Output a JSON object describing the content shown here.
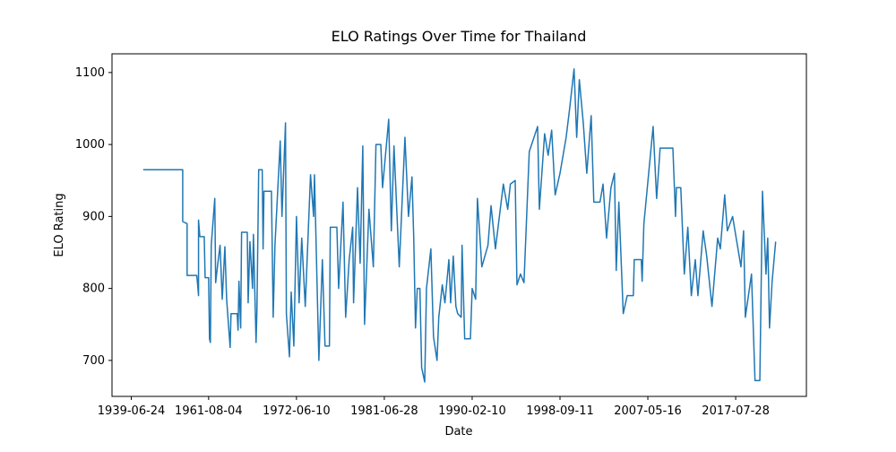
{
  "chart_data": {
    "type": "line",
    "title": "ELO Ratings Over Time for Thailand",
    "xlabel": "Date",
    "ylabel": "ELO Rating",
    "color": "#1f77b4",
    "grid": false,
    "xlim": [
      -20,
      1561
    ],
    "ylim": [
      650,
      1126
    ],
    "xticks": [
      {
        "value": 24,
        "label": "1939-06-24"
      },
      {
        "value": 200,
        "label": "1961-08-04"
      },
      {
        "value": 400,
        "label": "1972-06-10"
      },
      {
        "value": 600,
        "label": "1981-06-28"
      },
      {
        "value": 800,
        "label": "1990-02-10"
      },
      {
        "value": 1000,
        "label": "1998-09-11"
      },
      {
        "value": 1200,
        "label": "2007-05-16"
      },
      {
        "value": 1400,
        "label": "2017-07-28"
      }
    ],
    "yticks": [
      700,
      800,
      900,
      1000,
      1100
    ],
    "x": [
      51,
      141,
      141,
      151,
      151,
      173,
      175,
      177,
      177,
      180,
      190,
      192,
      200,
      202,
      204,
      206,
      214,
      216,
      220,
      226,
      231,
      237,
      241,
      249,
      251,
      265,
      267,
      269,
      273,
      275,
      288,
      290,
      294,
      300,
      302,
      308,
      310,
      314,
      322,
      324,
      326,
      343,
      347,
      351,
      363,
      367,
      375,
      377,
      384,
      388,
      394,
      400,
      406,
      412,
      420,
      432,
      439,
      441,
      451,
      459,
      465,
      475,
      477,
      492,
      496,
      506,
      512,
      520,
      528,
      530,
      539,
      545,
      551,
      555,
      565,
      575,
      581,
      592,
      596,
      610,
      616,
      622,
      634,
      647,
      655,
      663,
      667,
      671,
      675,
      681,
      685,
      692,
      696,
      706,
      712,
      720,
      724,
      732,
      738,
      747,
      751,
      757,
      763,
      767,
      775,
      777,
      783,
      796,
      800,
      808,
      812,
      822,
      836,
      843,
      853,
      871,
      881,
      887,
      898,
      902,
      910,
      918,
      930,
      949,
      953,
      965,
      973,
      981,
      989,
      1000,
      1014,
      1022,
      1032,
      1038,
      1044,
      1053,
      1061,
      1071,
      1077,
      1091,
      1098,
      1106,
      1116,
      1124,
      1128,
      1134,
      1144,
      1153,
      1167,
      1169,
      1185,
      1187,
      1191,
      1212,
      1220,
      1228,
      1257,
      1263,
      1265,
      1275,
      1283,
      1291,
      1299,
      1308,
      1314,
      1326,
      1334,
      1346,
      1359,
      1365,
      1375,
      1381,
      1393,
      1412,
      1418,
      1422,
      1436,
      1444,
      1455,
      1461,
      1469,
      1473,
      1477,
      1483,
      1491
    ],
    "values": [
      965,
      965,
      893,
      890,
      818,
      818,
      805,
      790,
      895,
      872,
      872,
      815,
      815,
      730,
      725,
      860,
      925,
      808,
      830,
      860,
      785,
      858,
      785,
      718,
      765,
      765,
      742,
      810,
      745,
      878,
      878,
      780,
      865,
      800,
      875,
      725,
      770,
      965,
      965,
      855,
      935,
      935,
      760,
      860,
      1005,
      900,
      1030,
      765,
      705,
      795,
      720,
      900,
      780,
      870,
      775,
      958,
      900,
      958,
      700,
      840,
      720,
      720,
      885,
      885,
      800,
      920,
      760,
      840,
      885,
      780,
      940,
      835,
      998,
      750,
      910,
      830,
      1000,
      1000,
      940,
      1035,
      880,
      998,
      830,
      1010,
      900,
      955,
      870,
      745,
      800,
      800,
      690,
      670,
      800,
      855,
      733,
      700,
      760,
      805,
      780,
      840,
      780,
      845,
      775,
      765,
      760,
      860,
      730,
      730,
      800,
      785,
      925,
      830,
      860,
      915,
      855,
      945,
      910,
      945,
      950,
      805,
      820,
      808,
      990,
      1025,
      910,
      1015,
      985,
      1020,
      930,
      960,
      1010,
      1050,
      1105,
      1010,
      1090,
      1030,
      960,
      1040,
      920,
      920,
      945,
      870,
      940,
      960,
      825,
      920,
      765,
      790,
      790,
      840,
      840,
      810,
      890,
      1025,
      925,
      995,
      995,
      900,
      940,
      940,
      820,
      885,
      790,
      840,
      790,
      880,
      845,
      775,
      870,
      855,
      930,
      880,
      900,
      830,
      880,
      760,
      820,
      672,
      672,
      935,
      820,
      870,
      745,
      810,
      865
    ]
  }
}
